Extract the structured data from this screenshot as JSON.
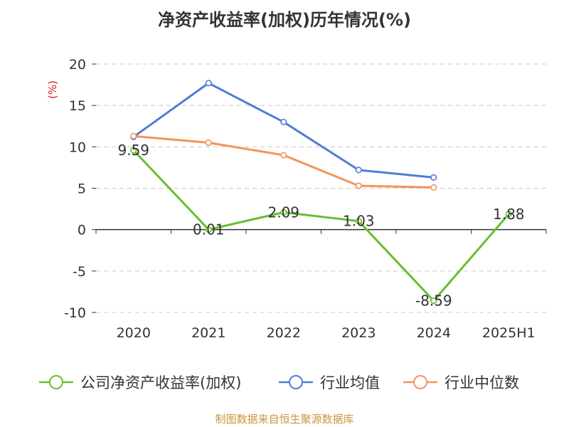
{
  "title": "净资产收益率(加权)历年情况(%)",
  "source": "制图数据来自恒生聚源数据库",
  "colors": {
    "company": "#66bf2e",
    "industry_avg": "#4e7fd6",
    "industry_median": "#f4945a",
    "unit_label": "#d42020",
    "grid": "#c8c8c8",
    "axis": "#333333",
    "text": "#333333"
  },
  "chart_data": {
    "type": "line",
    "title": "净资产收益率(加权)历年情况(%)",
    "ylabel": "(%)",
    "xlabel": "",
    "categories": [
      "2020",
      "2021",
      "2022",
      "2023",
      "2024",
      "2025H1"
    ],
    "ylim": [
      -10,
      20
    ],
    "yticks": [
      20,
      15,
      10,
      5,
      0,
      -5,
      -10
    ],
    "grid": true,
    "grid_style": "dashed horizontal",
    "legend_position": "bottom",
    "series": [
      {
        "name": "公司净资产收益率(加权)",
        "color": "#66bf2e",
        "values": [
          9.59,
          0.01,
          2.09,
          1.03,
          -8.59,
          1.88
        ],
        "labels": [
          "9.59",
          "0.01",
          "2.09",
          "1.03",
          "-8.59",
          "1.88"
        ],
        "show_labels": true
      },
      {
        "name": "行业均值",
        "color": "#4e7fd6",
        "values": [
          11.2,
          17.7,
          13.0,
          7.2,
          6.3,
          null
        ],
        "show_labels": false
      },
      {
        "name": "行业中位数",
        "color": "#f4945a",
        "values": [
          11.3,
          10.5,
          9.0,
          5.3,
          5.1,
          null
        ],
        "show_labels": false
      }
    ]
  }
}
